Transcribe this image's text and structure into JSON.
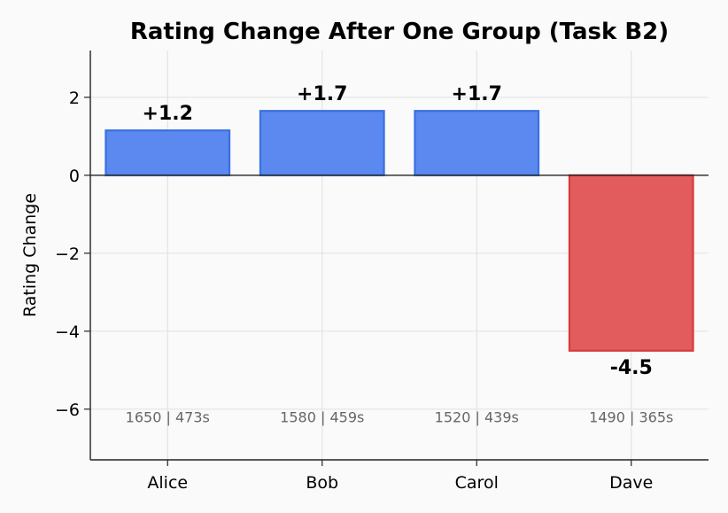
{
  "chart_data": {
    "type": "bar",
    "title": "Rating Change After One Group (Task B2)",
    "xlabel": "",
    "ylabel": "Rating Change",
    "categories": [
      "Alice",
      "Bob",
      "Carol",
      "Dave"
    ],
    "values": [
      1.15,
      1.65,
      1.65,
      -4.5
    ],
    "data_labels": [
      "+1.2",
      "+1.7",
      "+1.7",
      "-4.5"
    ],
    "annotations": [
      "1650 | 473s",
      "1580 | 459s",
      "1520 | 439s",
      "1490 | 365s"
    ],
    "annotation_y": -6.2,
    "ylim": [
      -7.3,
      3.2
    ],
    "yticks": [
      2,
      0,
      -2,
      -4,
      -6
    ],
    "ytick_labels": [
      "2",
      "0",
      "−2",
      "−4",
      "−6"
    ],
    "grid": true,
    "colors": {
      "positive_fill": "#5b89ef",
      "positive_edge": "#3a70e0",
      "negative_fill": "#e25c5e",
      "negative_edge": "#d83a3c",
      "grid": "#e3e3e3",
      "axis": "#222222",
      "annotation": "#666666",
      "background": "#fafafa"
    }
  }
}
